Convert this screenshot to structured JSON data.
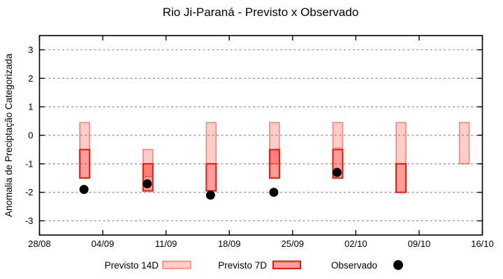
{
  "title": "Rio Ji-Paraná - Previsto x Observado",
  "chart_data": {
    "type": "box-forecast-vs-observed",
    "title": "Rio Ji-Paraná - Previsto x Observado",
    "ylabel": "Anomalia de Preciptação Categorizada",
    "xlabel": "",
    "ylim": [
      -3.5,
      3.5
    ],
    "y_ticks": [
      3,
      2,
      1,
      0,
      -1,
      -2,
      -3
    ],
    "x_tick_labels": [
      "28/08",
      "04/09",
      "11/09",
      "18/09",
      "25/09",
      "02/10",
      "09/10",
      "16/10"
    ],
    "x_tick_days": [
      0,
      7,
      14,
      21,
      28,
      35,
      42,
      49
    ],
    "xlim_days": [
      0,
      49
    ],
    "grid": true,
    "legend_position": "below-plot",
    "legend": [
      "Previsto 14D",
      "Previsto 7D",
      "Observado"
    ],
    "groups": [
      {
        "date": "02/09",
        "day": 5,
        "previsto14": [
          0.45,
          -0.5
        ],
        "previsto7": [
          -0.5,
          -1.5
        ],
        "observado": -1.9
      },
      {
        "date": "09/09",
        "day": 12,
        "previsto14": [
          -0.5,
          -1.45
        ],
        "previsto7": [
          -1.0,
          -1.95
        ],
        "observado": -1.7
      },
      {
        "date": "16/09",
        "day": 19,
        "previsto14": [
          0.45,
          -1.0
        ],
        "previsto7": [
          -1.0,
          -1.95
        ],
        "observado": -2.1
      },
      {
        "date": "23/09",
        "day": 26,
        "previsto14": [
          0.45,
          -1.0
        ],
        "previsto7": [
          -0.5,
          -1.5
        ],
        "observado": -2.0
      },
      {
        "date": "30/09",
        "day": 33,
        "previsto14": [
          0.45,
          -0.45
        ],
        "previsto7": [
          -0.5,
          -1.5
        ],
        "observado": -1.3
      },
      {
        "date": "07/10",
        "day": 40,
        "previsto14": [
          0.45,
          -1.0
        ],
        "previsto7": [
          -1.0,
          -2.0
        ],
        "observado": null
      },
      {
        "date": "14/10",
        "day": 47,
        "previsto14": [
          0.45,
          -1.0
        ],
        "previsto7": null,
        "observado": null
      }
    ],
    "colors": {
      "previsto14_fill": "rgba(255,60,45,0.26)",
      "previsto14_border": "rgba(235,55,40,0.55)",
      "previsto7_fill": "rgba(255,25,15,0.42)",
      "previsto7_border": "#ee1508",
      "observado": "#000000",
      "grid": "#909090",
      "axis": "#000000"
    }
  }
}
